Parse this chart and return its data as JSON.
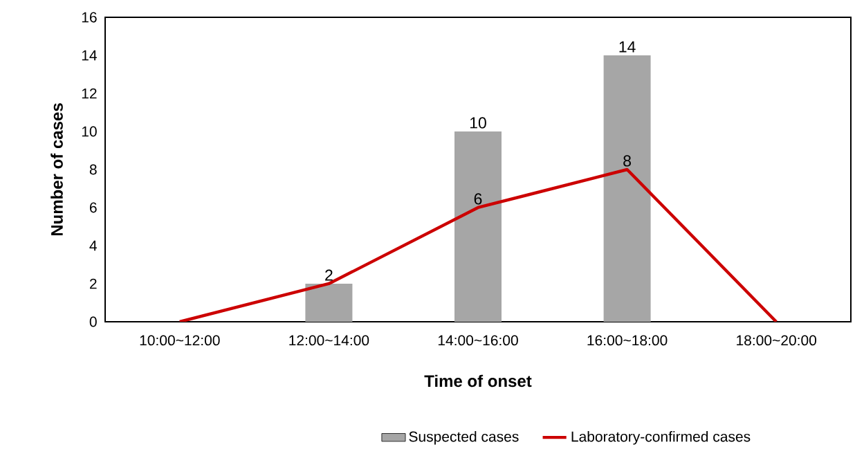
{
  "chart_data": {
    "type": "bar",
    "xlabel": "Time of onset",
    "ylabel": "Number of cases",
    "categories": [
      "10:00~12:00",
      "12:00~14:00",
      "14:00~16:00",
      "16:00~18:00",
      "18:00~20:00"
    ],
    "series": [
      {
        "name": "Suspected cases",
        "color": "#a6a6a6",
        "values": [
          null,
          2,
          10,
          14,
          null
        ],
        "value_labels": [
          null,
          "2",
          "10",
          "14",
          null
        ]
      },
      {
        "name": "Laboratory-confirmed cases",
        "type": "line",
        "color": "#cc0000",
        "values": [
          0,
          2,
          6,
          8,
          0
        ],
        "value_labels": [
          null,
          null,
          "6",
          "8",
          null
        ]
      }
    ],
    "ylim": [
      0,
      16
    ],
    "yticks": [
      0,
      2,
      4,
      6,
      8,
      10,
      12,
      14,
      16
    ],
    "legend": "bottom",
    "grid": false,
    "marker": "none",
    "line_style": "solid"
  }
}
